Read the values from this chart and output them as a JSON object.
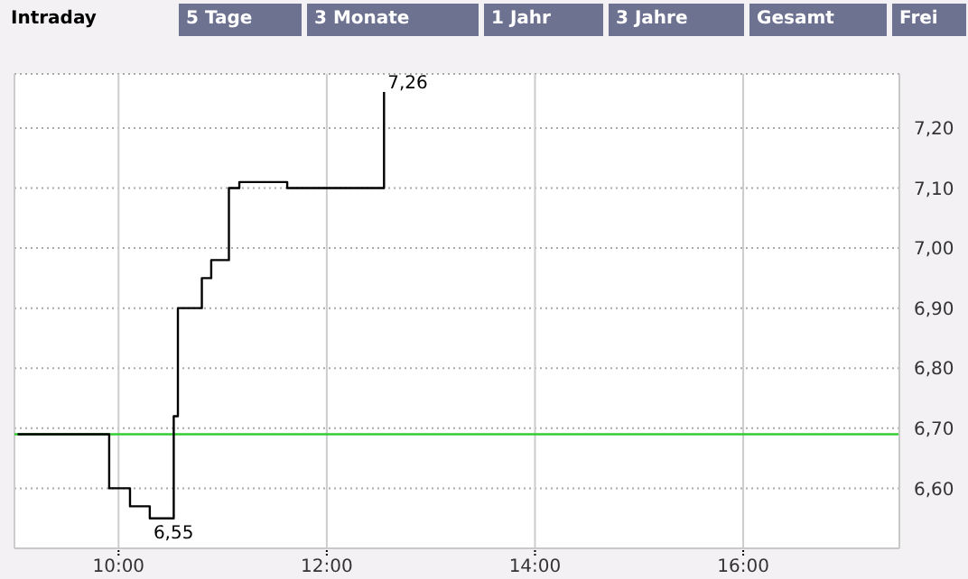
{
  "chart_data": {
    "type": "step",
    "annotations": [
      "Intraday",
      "5 Tage",
      "3 Monate",
      "1 Jahr",
      "3 Jahre",
      "Gesamt",
      "Frei"
    ],
    "x": [
      9.03,
      9.91,
      10.11,
      10.3,
      10.53,
      10.57,
      10.8,
      10.89,
      11.06,
      11.16,
      11.62,
      12.55
    ],
    "series": [
      {
        "color": "#000000",
        "values": [
          6.69,
          6.6,
          6.57,
          6.55,
          6.72,
          6.9,
          6.95,
          6.98,
          7.1,
          7.11,
          7.1,
          7.26
        ],
        "value_labels": [
          null,
          null,
          null,
          "6,55",
          null,
          null,
          null,
          null,
          null,
          null,
          null,
          "7,26"
        ]
      }
    ],
    "xlim": [
      9,
      17.5
    ],
    "xticks": [
      {
        "value": 10,
        "label": "10:00"
      },
      {
        "value": 12,
        "label": "12:00"
      },
      {
        "value": 14,
        "label": "14:00"
      },
      {
        "value": 16,
        "label": "16:00"
      }
    ],
    "ylim": [
      6.5,
      7.29
    ],
    "yticks": [
      {
        "value": 6.6,
        "label": "6,60"
      },
      {
        "value": 6.7,
        "label": "6,70"
      },
      {
        "value": 6.8,
        "label": "6,80"
      },
      {
        "value": 6.9,
        "label": "6,90"
      },
      {
        "value": 7.0,
        "label": "7,00"
      },
      {
        "value": 7.1,
        "label": "7,10"
      },
      {
        "value": 7.2,
        "label": "7,20"
      }
    ],
    "ref_lines": [
      {
        "axis": "y",
        "value": 6.69,
        "color": "#33cc33"
      }
    ],
    "grid": true,
    "legend": false,
    "marker": "none",
    "line_style": "solid"
  }
}
